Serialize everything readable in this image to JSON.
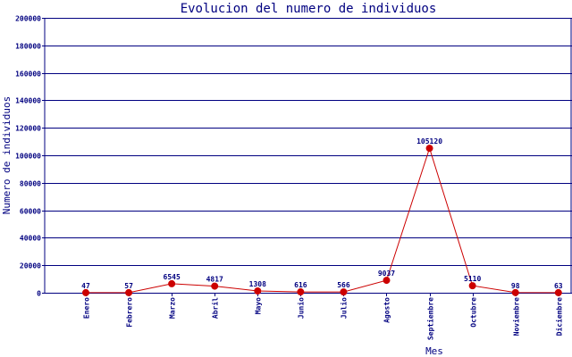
{
  "chart_data": {
    "type": "line",
    "title": "Evolucion del numero de individuos",
    "xlabel": "Mes",
    "ylabel": "Numero de individuos",
    "categories": [
      "Enero",
      "Febrero",
      "Marzo",
      "Abril",
      "Mayo",
      "Junio",
      "Julio",
      "Agosto",
      "Septiembre",
      "Octubre",
      "Noviembre",
      "Diciembre"
    ],
    "values": [
      47,
      57,
      6545,
      4817,
      1308,
      616,
      566,
      9037,
      105120,
      5110,
      98,
      63
    ],
    "data_labels": [
      "47",
      "57",
      "6545",
      "4817",
      "1308",
      "616",
      "566",
      "9037",
      "105120",
      "5110",
      "98",
      "63"
    ],
    "ylim": [
      0,
      200000
    ],
    "yticks": [
      0,
      20000,
      40000,
      60000,
      80000,
      100000,
      120000,
      140000,
      160000,
      180000,
      200000
    ],
    "ytick_labels": [
      "0",
      "20000",
      "40000",
      "60000",
      "80000",
      "100000",
      "120000",
      "140000",
      "160000",
      "180000",
      "200000"
    ],
    "grid": true,
    "colors": {
      "line": "#cc0000",
      "marker": "#cc0000",
      "grid": "#000080",
      "text": "#000080"
    }
  }
}
